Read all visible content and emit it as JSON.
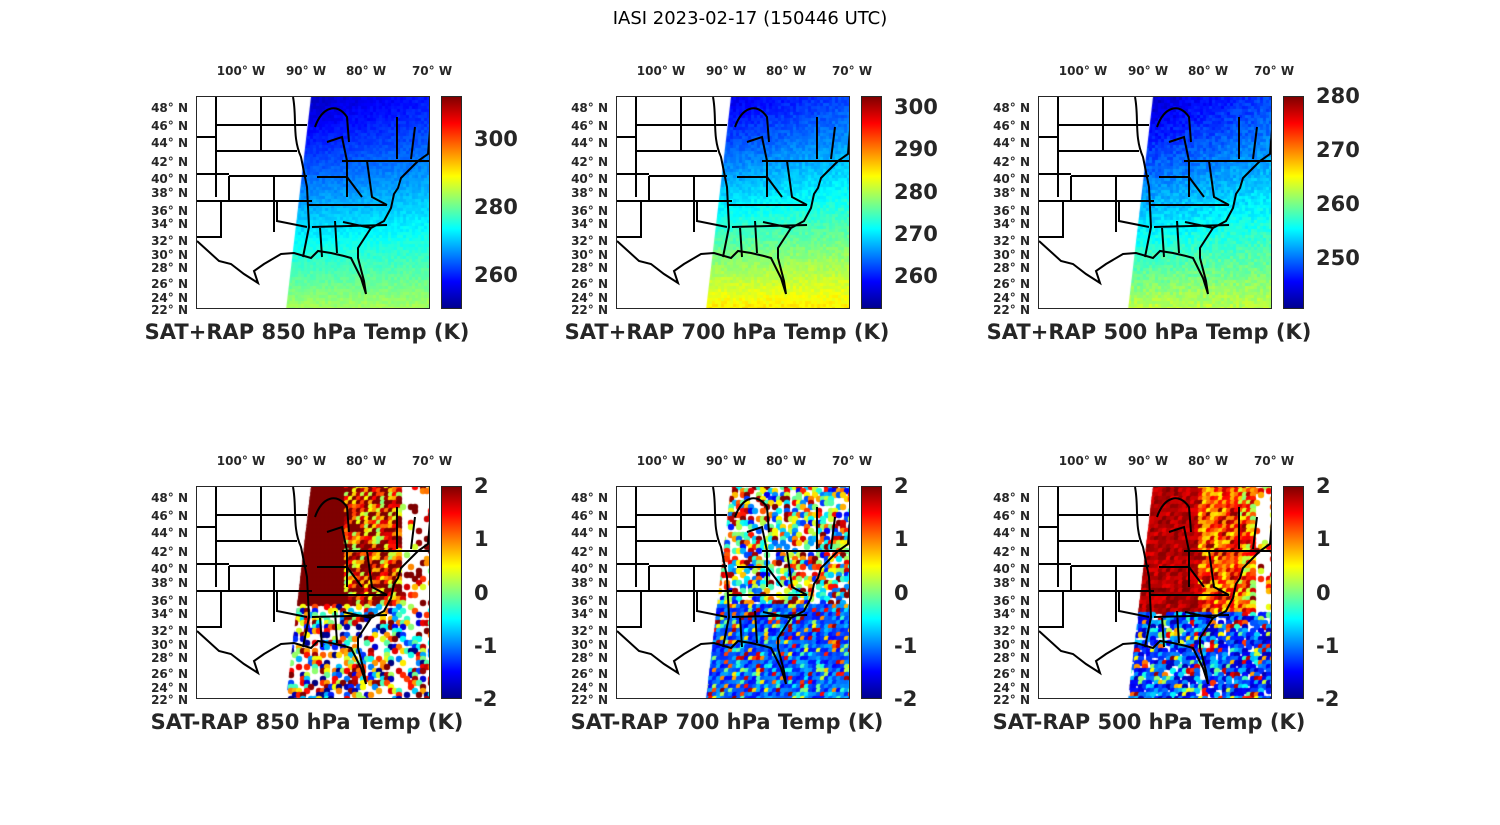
{
  "title": "IASI 2023-02-17 (150446 UTC)",
  "lon_labels": [
    "100° W",
    "90° W",
    "80° W",
    "70° W"
  ],
  "lat_labels": [
    "48° N",
    "46° N",
    "44° N",
    "42° N",
    "40° N",
    "38° N",
    "36° N",
    "34° N",
    "32° N",
    "30° N",
    "28° N",
    "26° N",
    "24° N",
    "22° N"
  ],
  "colormap": "jet",
  "panels": [
    {
      "title": "SAT+RAP 850 hPa Temp (K)",
      "kind": "sum",
      "clim": [
        250,
        312.6
      ],
      "ticks": [
        "260",
        "280",
        "300"
      ]
    },
    {
      "title": "SAT+RAP 700 hPa Temp (K)",
      "kind": "sum",
      "clim": [
        252.2,
        302.6
      ],
      "ticks": [
        "260",
        "270",
        "280",
        "290",
        "300"
      ]
    },
    {
      "title": "SAT+RAP 500 hPa Temp (K)",
      "kind": "sum",
      "clim": [
        240.5,
        280
      ],
      "ticks": [
        "250",
        "260",
        "270",
        "280"
      ]
    },
    {
      "title": "SAT-RAP 850 hPa Temp (K)",
      "kind": "diff",
      "clim": [
        -2,
        2
      ],
      "ticks": [
        "-2",
        "-1",
        "0",
        "1",
        "2"
      ]
    },
    {
      "title": "SAT-RAP 700 hPa Temp (K)",
      "kind": "diff",
      "clim": [
        -2,
        2
      ],
      "ticks": [
        "-2",
        "-1",
        "0",
        "1",
        "2"
      ]
    },
    {
      "title": "SAT-RAP 500 hPa Temp (K)",
      "kind": "diff",
      "clim": [
        -2,
        2
      ],
      "ticks": [
        "-2",
        "-1",
        "0",
        "1",
        "2"
      ]
    }
  ]
}
